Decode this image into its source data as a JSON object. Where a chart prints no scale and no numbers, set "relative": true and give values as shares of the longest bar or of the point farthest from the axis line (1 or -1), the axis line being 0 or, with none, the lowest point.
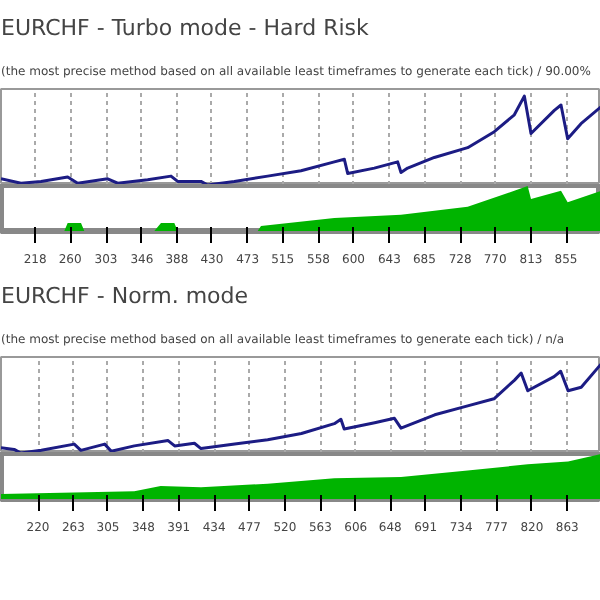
{
  "chart_data": [
    {
      "type": "line",
      "title": "EURCHF - Turbo mode - Hard Risk",
      "subtitle": "(the most precise method based on all available least timeframes to generate each tick) / 90.00%",
      "relative": true,
      "tick_labels": false,
      "grid": "x",
      "xlim": [
        177,
        897
      ],
      "xticks": [
        218,
        260,
        303,
        346,
        388,
        430,
        473,
        515,
        558,
        600,
        643,
        685,
        728,
        770,
        813,
        855
      ],
      "series": [
        {
          "color": "#1c1c84",
          "x": [
            177,
            201,
            225,
            257,
            269,
            305,
            317,
            353,
            381,
            389,
            417,
            425,
            457,
            497,
            537,
            577,
            589,
            593,
            625,
            653,
            657,
            665,
            697,
            737,
            769,
            793,
            805,
            813,
            841,
            849,
            857,
            873,
            897
          ],
          "values": [
            0.07,
            0.02,
            0.04,
            0.09,
            0.02,
            0.07,
            0.02,
            0.06,
            0.1,
            0.04,
            0.04,
            0,
            0.04,
            0.1,
            0.16,
            0.26,
            0.29,
            0.13,
            0.19,
            0.26,
            0.14,
            0.19,
            0.31,
            0.42,
            0.6,
            0.79,
            1,
            0.58,
            0.84,
            0.9,
            0.52,
            0.69,
            0.88
          ]
        }
      ]
    },
    {
      "type": "area",
      "relative": true,
      "xlim": [
        177,
        897
      ],
      "xticks": [
        218,
        260,
        303,
        346,
        388,
        430,
        473,
        515,
        558,
        600,
        643,
        685,
        728,
        770,
        813,
        855
      ],
      "series": [
        {
          "color": "#00b400",
          "x": [
            177,
            253,
            257,
            273,
            277,
            361,
            369,
            385,
            389,
            485,
            489,
            577,
            657,
            737,
            793,
            809,
            813,
            849,
            857,
            897
          ],
          "values": [
            0,
            0,
            0.18,
            0.18,
            0,
            0,
            0.18,
            0.18,
            0,
            0,
            0.11,
            0.29,
            0.36,
            0.54,
            0.89,
            1,
            0.71,
            0.89,
            0.64,
            0.89
          ]
        }
      ]
    },
    {
      "type": "line",
      "title": "EURCHF - Norm. mode",
      "subtitle": "(the most precise method based on all available least timeframes to generate each tick) / n/a",
      "relative": true,
      "tick_labels": false,
      "grid": "x",
      "xlim": [
        175,
        904
      ],
      "xticks": [
        220,
        263,
        305,
        348,
        391,
        434,
        477,
        520,
        563,
        606,
        648,
        691,
        734,
        777,
        820,
        863
      ],
      "series": [
        {
          "color": "#1c1c84",
          "x": [
            175,
            191,
            199,
            224,
            264,
            272,
            301,
            309,
            337,
            378,
            386,
            410,
            418,
            459,
            499,
            540,
            580,
            588,
            592,
            629,
            653,
            661,
            702,
            742,
            774,
            799,
            807,
            815,
            847,
            855,
            864,
            880,
            904
          ],
          "values": [
            0.06,
            0.04,
            0,
            0.03,
            0.1,
            0.03,
            0.1,
            0.02,
            0.08,
            0.14,
            0.08,
            0.11,
            0.05,
            0.1,
            0.15,
            0.22,
            0.33,
            0.38,
            0.27,
            0.34,
            0.39,
            0.28,
            0.43,
            0.53,
            0.61,
            0.82,
            0.9,
            0.7,
            0.86,
            0.92,
            0.7,
            0.74,
            1
          ]
        }
      ]
    },
    {
      "type": "area",
      "relative": true,
      "xlim": [
        175,
        904
      ],
      "xticks": [
        220,
        263,
        305,
        348,
        391,
        434,
        477,
        520,
        563,
        606,
        648,
        691,
        734,
        777,
        820,
        863
      ],
      "series": [
        {
          "color": "#00b400",
          "x": [
            175,
            337,
            369,
            418,
            499,
            580,
            661,
            742,
            815,
            864,
            904
          ],
          "values": [
            0.11,
            0.17,
            0.29,
            0.26,
            0.34,
            0.46,
            0.49,
            0.63,
            0.77,
            0.83,
            1
          ]
        }
      ]
    }
  ]
}
